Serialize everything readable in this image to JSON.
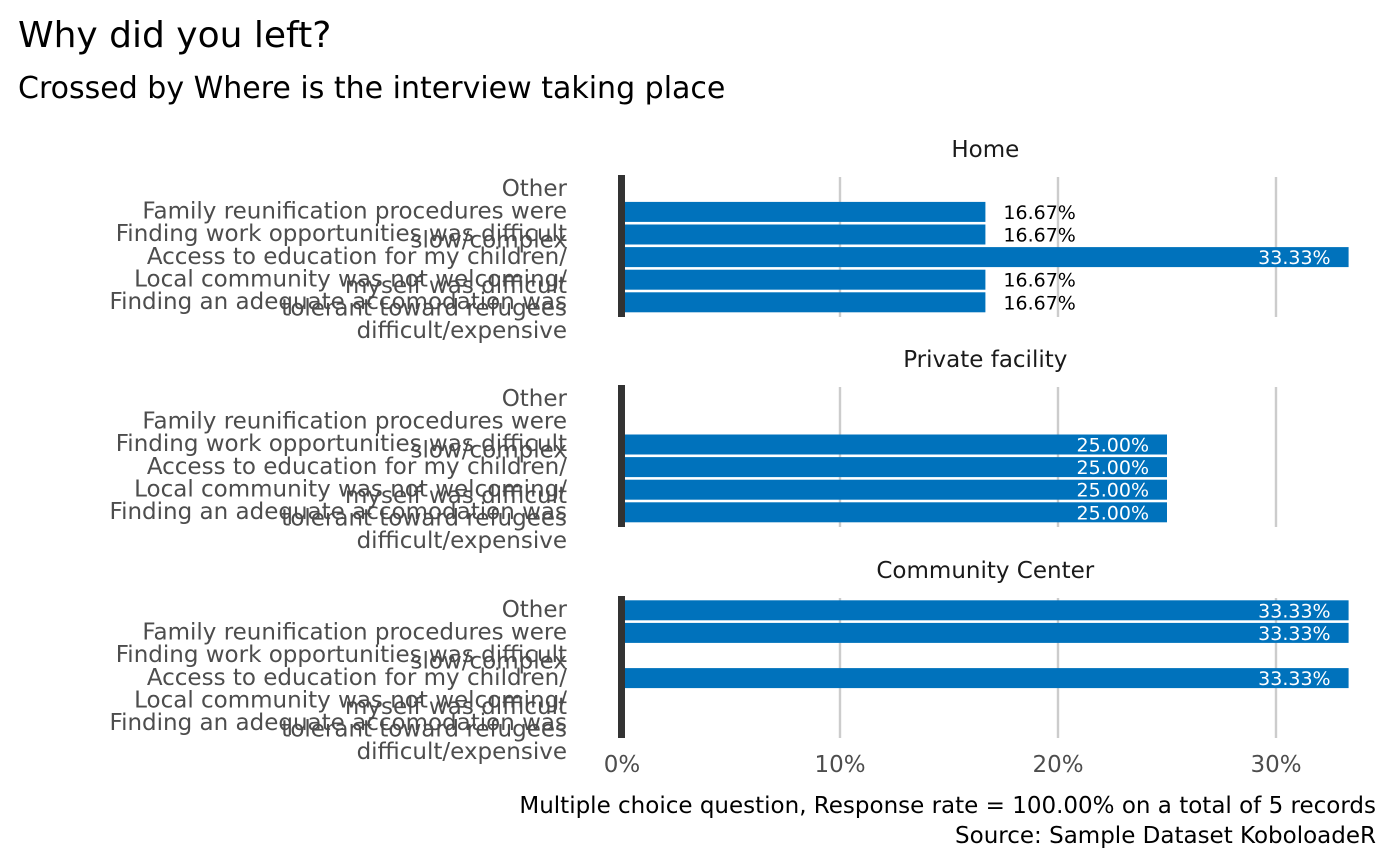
{
  "chart_data": {
    "type": "bar",
    "title": "Why did you left?",
    "subtitle": "Crossed by Where is the interview taking place",
    "caption": [
      "Multiple choice question, Response rate = 100.00% on a total of 5 records",
      "Source: Sample Dataset KoboloadeR"
    ],
    "categories": [
      [
        "Other"
      ],
      [
        "Family reunification procedures were",
        "slow/complex"
      ],
      [
        "Finding work opportunities was difficult"
      ],
      [
        "Access to education for my children/",
        "myself was difficult"
      ],
      [
        "Local community was not welcoming/",
        "tolerant toward refugees"
      ],
      [
        "Finding an adequate accomodation was",
        "difficult/expensive"
      ]
    ],
    "x_ticks": [
      "0%",
      "10%",
      "20%",
      "30%"
    ],
    "xlim": [
      0,
      0.3333
    ],
    "grid": "vertical",
    "bar_color": "#0072bc",
    "facets": [
      {
        "name": "Home",
        "values": [
          null,
          0.1667,
          0.1667,
          0.3333,
          0.1667,
          0.1667
        ],
        "labels": [
          "",
          "16.67%",
          "16.67%",
          "33.33%",
          "16.67%",
          "16.67%"
        ]
      },
      {
        "name": "Private facility",
        "values": [
          null,
          null,
          0.25,
          0.25,
          0.25,
          0.25
        ],
        "labels": [
          "",
          "",
          "25.00%",
          "25.00%",
          "25.00%",
          "25.00%"
        ]
      },
      {
        "name": "Community Center",
        "values": [
          0.3333,
          0.3333,
          null,
          0.3333,
          null,
          null
        ],
        "labels": [
          "33.33%",
          "33.33%",
          "",
          "33.33%",
          "",
          ""
        ]
      }
    ]
  }
}
